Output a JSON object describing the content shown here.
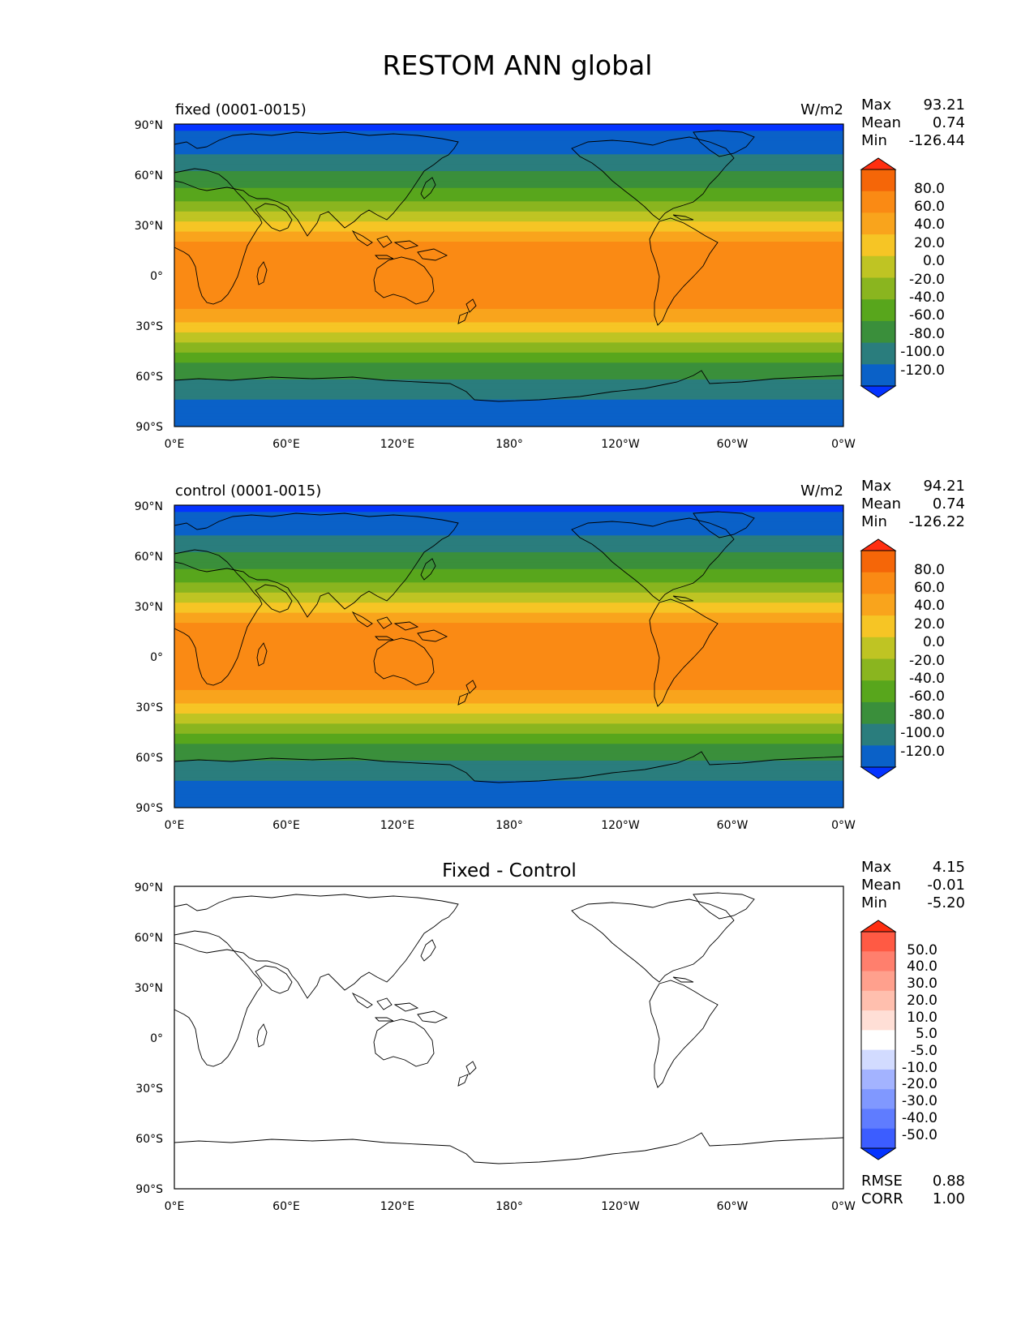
{
  "figure": {
    "title": "RESTOM ANN global"
  },
  "colors": {
    "abs_levels": [
      "#0433ff",
      "#0a61c8",
      "#2a7d7d",
      "#3a8f3b",
      "#58a61c",
      "#8ab51f",
      "#bfc423",
      "#f6c525",
      "#f9a41c",
      "#fa8a14",
      "#f56608",
      "#ff2e10"
    ],
    "diff_levels": [
      "#0433ff",
      "#3c5dff",
      "#5f7cff",
      "#8098ff",
      "#a3b3ff",
      "#d2dbff",
      "#ffffff",
      "#ffdfd6",
      "#ffbfae",
      "#ffa08d",
      "#ff7f6d",
      "#ff5a44",
      "#ff2e10"
    ],
    "coast": "#000000"
  },
  "stats_labels": {
    "max": "Max",
    "mean": "Mean",
    "min": "Min",
    "rmse": "RMSE",
    "corr": "CORR"
  },
  "panels": [
    {
      "id": "fixed",
      "left_title": "fixed (0001-0015)",
      "center_title": "",
      "units": "W/m2",
      "stats": {
        "max": "93.21",
        "mean": "0.74",
        "min": "-126.44"
      },
      "colorbar_ticks": [
        "80.0",
        "60.0",
        "40.0",
        "20.0",
        "0.0",
        "-20.0",
        "-40.0",
        "-60.0",
        "-80.0",
        "-100.0",
        "-120.0"
      ]
    },
    {
      "id": "control",
      "left_title": "control (0001-0015)",
      "center_title": "",
      "units": "W/m2",
      "stats": {
        "max": "94.21",
        "mean": "0.74",
        "min": "-126.22"
      },
      "colorbar_ticks": [
        "80.0",
        "60.0",
        "40.0",
        "20.0",
        "0.0",
        "-20.0",
        "-40.0",
        "-60.0",
        "-80.0",
        "-100.0",
        "-120.0"
      ]
    },
    {
      "id": "diff",
      "left_title": "",
      "center_title": "Fixed - Control",
      "units": "",
      "stats": {
        "max": "4.15",
        "mean": "-0.01",
        "min": "-5.20"
      },
      "extra_stats": {
        "rmse": "0.88",
        "corr": "1.00"
      },
      "colorbar_ticks": [
        "50.0",
        "40.0",
        "30.0",
        "20.0",
        "10.0",
        "5.0",
        "-5.0",
        "-10.0",
        "-20.0",
        "-30.0",
        "-40.0",
        "-50.0"
      ]
    }
  ],
  "chart_data": [
    {
      "type": "heatmap",
      "title": "fixed (0001-0015)",
      "units": "W/m2",
      "xticks": [
        "0°E",
        "60°E",
        "120°E",
        "180°",
        "120°W",
        "60°W",
        "0°W"
      ],
      "yticks": [
        "90°N",
        "60°N",
        "30°N",
        "0°",
        "30°S",
        "60°S",
        "90°S"
      ],
      "xlim": [
        0,
        360
      ],
      "ylim": [
        -90,
        90
      ],
      "levels": [
        -120,
        -100,
        -80,
        -60,
        -40,
        -20,
        0,
        20,
        40,
        60,
        80
      ],
      "zonal_mean_profile": {
        "lat": [
          90,
          80,
          70,
          60,
          50,
          40,
          30,
          20,
          10,
          0,
          -10,
          -20,
          -30,
          -40,
          -50,
          -60,
          -70,
          -80,
          -90
        ],
        "value": [
          -125,
          -115,
          -95,
          -75,
          -55,
          -30,
          10,
          40,
          55,
          60,
          55,
          40,
          15,
          -20,
          -55,
          -75,
          -95,
          -108,
          -110
        ]
      },
      "stats": {
        "max": 93.21,
        "mean": 0.74,
        "min": -126.44
      }
    },
    {
      "type": "heatmap",
      "title": "control (0001-0015)",
      "units": "W/m2",
      "xticks": [
        "0°E",
        "60°E",
        "120°E",
        "180°",
        "120°W",
        "60°W",
        "0°W"
      ],
      "yticks": [
        "90°N",
        "60°N",
        "30°N",
        "0°",
        "30°S",
        "60°S",
        "90°S"
      ],
      "xlim": [
        0,
        360
      ],
      "ylim": [
        -90,
        90
      ],
      "levels": [
        -120,
        -100,
        -80,
        -60,
        -40,
        -20,
        0,
        20,
        40,
        60,
        80
      ],
      "zonal_mean_profile": {
        "lat": [
          90,
          80,
          70,
          60,
          50,
          40,
          30,
          20,
          10,
          0,
          -10,
          -20,
          -30,
          -40,
          -50,
          -60,
          -70,
          -80,
          -90
        ],
        "value": [
          -125,
          -115,
          -95,
          -75,
          -55,
          -30,
          10,
          40,
          55,
          60,
          55,
          40,
          15,
          -20,
          -55,
          -75,
          -95,
          -108,
          -110
        ]
      },
      "stats": {
        "max": 94.21,
        "mean": 0.74,
        "min": -126.22
      }
    },
    {
      "type": "heatmap",
      "title": "Fixed - Control",
      "xticks": [
        "0°E",
        "60°E",
        "120°E",
        "180°",
        "120°W",
        "60°W",
        "0°W"
      ],
      "yticks": [
        "90°N",
        "60°N",
        "30°N",
        "0°",
        "30°S",
        "60°S",
        "90°S"
      ],
      "xlim": [
        0,
        360
      ],
      "ylim": [
        -90,
        90
      ],
      "levels": [
        -50,
        -40,
        -30,
        -20,
        -10,
        -5,
        5,
        10,
        20,
        30,
        40,
        50
      ],
      "zonal_mean_profile": {
        "lat": [
          90,
          0,
          -90
        ],
        "value": [
          0,
          0,
          0
        ]
      },
      "stats": {
        "max": 4.15,
        "mean": -0.01,
        "min": -5.2,
        "rmse": 0.88,
        "corr": 1.0
      }
    }
  ]
}
